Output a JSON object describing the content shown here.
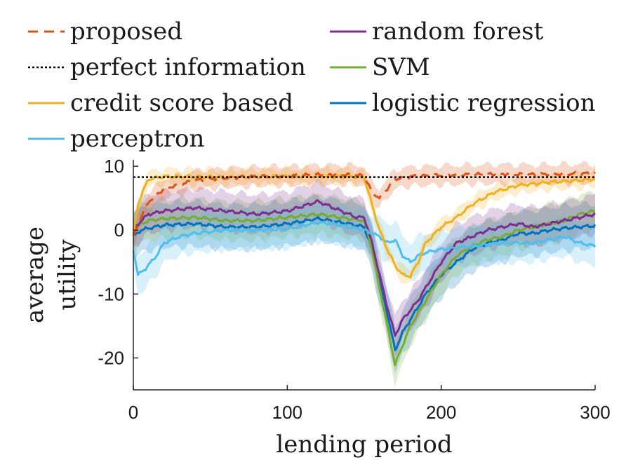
{
  "chart_data": {
    "type": "line",
    "xlabel": "lending period",
    "ylabel": [
      "average",
      "utility"
    ],
    "xlim": [
      0,
      300
    ],
    "ylim": [
      -25,
      11
    ],
    "xticks": [
      0,
      100,
      200,
      300
    ],
    "yticks": [
      10,
      0,
      -10,
      -20
    ],
    "grid": false,
    "legend_placement": "top",
    "series": [
      {
        "name": "proposed",
        "color": "#D95319",
        "dash": "dashed",
        "band": 1.5,
        "points": [
          [
            0,
            -1
          ],
          [
            5,
            2
          ],
          [
            10,
            4.5
          ],
          [
            20,
            6.5
          ],
          [
            40,
            7.8
          ],
          [
            60,
            8.2
          ],
          [
            80,
            8.4
          ],
          [
            100,
            8.5
          ],
          [
            120,
            8.7
          ],
          [
            140,
            8.7
          ],
          [
            150,
            8.5
          ],
          [
            155,
            6
          ],
          [
            160,
            5
          ],
          [
            165,
            6.5
          ],
          [
            170,
            8
          ],
          [
            180,
            8.4
          ],
          [
            200,
            8.6
          ],
          [
            220,
            8.7
          ],
          [
            240,
            8.8
          ],
          [
            260,
            8.7
          ],
          [
            280,
            8.8
          ],
          [
            300,
            8.9
          ]
        ]
      },
      {
        "name": "perfect information",
        "color": "#000000",
        "dash": "dotted",
        "band": 0,
        "points": [
          [
            0,
            8.3
          ],
          [
            300,
            8.3
          ]
        ]
      },
      {
        "name": "credit score based",
        "color": "#EDB120",
        "dash": "solid",
        "band": 1.2,
        "points": [
          [
            0,
            -1
          ],
          [
            3,
            4
          ],
          [
            6,
            6
          ],
          [
            10,
            8
          ],
          [
            20,
            8.4
          ],
          [
            60,
            8.3
          ],
          [
            100,
            8.4
          ],
          [
            140,
            8.4
          ],
          [
            150,
            8.3
          ],
          [
            155,
            4
          ],
          [
            160,
            0
          ],
          [
            165,
            -3
          ],
          [
            170,
            -5.5
          ],
          [
            175,
            -7
          ],
          [
            180,
            -7.2
          ],
          [
            185,
            -5
          ],
          [
            190,
            -2
          ],
          [
            200,
            0.5
          ],
          [
            210,
            2
          ],
          [
            220,
            4
          ],
          [
            235,
            6
          ],
          [
            250,
            7
          ],
          [
            270,
            7.5
          ],
          [
            290,
            7.8
          ],
          [
            300,
            8
          ]
        ]
      },
      {
        "name": "perceptron",
        "color": "#4DBEEE",
        "dash": "solid",
        "band": 3,
        "points": [
          [
            0,
            -3
          ],
          [
            3,
            -7
          ],
          [
            8,
            -6
          ],
          [
            15,
            -4
          ],
          [
            20,
            -2
          ],
          [
            30,
            -1
          ],
          [
            40,
            -0.5
          ],
          [
            60,
            0
          ],
          [
            80,
            0
          ],
          [
            100,
            0.2
          ],
          [
            120,
            1.2
          ],
          [
            130,
            1
          ],
          [
            140,
            0.5
          ],
          [
            150,
            0
          ],
          [
            160,
            -1
          ],
          [
            165,
            -2
          ],
          [
            170,
            -1.5
          ],
          [
            175,
            -4
          ],
          [
            180,
            -5
          ],
          [
            185,
            -4
          ],
          [
            190,
            -3.5
          ],
          [
            200,
            -3
          ],
          [
            220,
            -2.5
          ],
          [
            240,
            -2
          ],
          [
            260,
            -2
          ],
          [
            270,
            -1.5
          ],
          [
            280,
            -1
          ],
          [
            290,
            -2
          ],
          [
            300,
            -2.5
          ]
        ]
      },
      {
        "name": "random forest",
        "color": "#7E2F8E",
        "dash": "solid",
        "band": 3,
        "points": [
          [
            0,
            0
          ],
          [
            5,
            1.5
          ],
          [
            10,
            2.5
          ],
          [
            20,
            3
          ],
          [
            40,
            3.5
          ],
          [
            60,
            3
          ],
          [
            80,
            2.5
          ],
          [
            100,
            3
          ],
          [
            120,
            4.5
          ],
          [
            130,
            3.5
          ],
          [
            145,
            2
          ],
          [
            150,
            2
          ],
          [
            155,
            -2
          ],
          [
            160,
            -7
          ],
          [
            165,
            -12
          ],
          [
            170,
            -16.5
          ],
          [
            175,
            -14
          ],
          [
            180,
            -12.5
          ],
          [
            185,
            -11
          ],
          [
            190,
            -9
          ],
          [
            200,
            -5
          ],
          [
            210,
            -2
          ],
          [
            220,
            -1
          ],
          [
            230,
            0
          ],
          [
            240,
            0.5
          ],
          [
            250,
            1
          ],
          [
            260,
            0.5
          ],
          [
            270,
            1
          ],
          [
            280,
            1.5
          ],
          [
            290,
            2
          ],
          [
            300,
            2.5
          ]
        ]
      },
      {
        "name": "SVM",
        "color": "#77AC30",
        "dash": "solid",
        "band": 3,
        "points": [
          [
            0,
            0
          ],
          [
            5,
            1
          ],
          [
            10,
            1.5
          ],
          [
            20,
            1.8
          ],
          [
            40,
            2
          ],
          [
            60,
            1.5
          ],
          [
            80,
            1.5
          ],
          [
            100,
            2
          ],
          [
            120,
            2.5
          ],
          [
            140,
            1.8
          ],
          [
            150,
            1.5
          ],
          [
            155,
            -3
          ],
          [
            160,
            -9
          ],
          [
            165,
            -15
          ],
          [
            170,
            -21
          ],
          [
            175,
            -18
          ],
          [
            180,
            -15
          ],
          [
            185,
            -13
          ],
          [
            190,
            -11
          ],
          [
            200,
            -7
          ],
          [
            210,
            -4
          ],
          [
            220,
            -2.5
          ],
          [
            230,
            -1.5
          ],
          [
            240,
            -1
          ],
          [
            250,
            0
          ],
          [
            260,
            0.5
          ],
          [
            270,
            1
          ],
          [
            280,
            1.5
          ],
          [
            290,
            2.5
          ],
          [
            300,
            3
          ]
        ]
      },
      {
        "name": "logistic regression",
        "color": "#0072BD",
        "dash": "solid",
        "band": 3.5,
        "points": [
          [
            0,
            -1
          ],
          [
            5,
            0
          ],
          [
            10,
            0.3
          ],
          [
            20,
            0.8
          ],
          [
            40,
            1
          ],
          [
            60,
            0.5
          ],
          [
            80,
            0.5
          ],
          [
            100,
            1
          ],
          [
            120,
            1.8
          ],
          [
            140,
            1
          ],
          [
            150,
            0.5
          ],
          [
            155,
            -3
          ],
          [
            160,
            -8
          ],
          [
            165,
            -13
          ],
          [
            170,
            -18.8
          ],
          [
            175,
            -16
          ],
          [
            180,
            -14
          ],
          [
            185,
            -12
          ],
          [
            190,
            -10
          ],
          [
            200,
            -7
          ],
          [
            210,
            -5
          ],
          [
            220,
            -3
          ],
          [
            230,
            -2
          ],
          [
            240,
            -1.5
          ],
          [
            250,
            -0.5
          ],
          [
            260,
            -0.5
          ],
          [
            270,
            0
          ],
          [
            280,
            0.3
          ],
          [
            290,
            0.5
          ],
          [
            300,
            0.7
          ]
        ]
      }
    ],
    "legend": {
      "columns": [
        [
          "proposed",
          "perfect information",
          "credit score based",
          "perceptron"
        ],
        [
          "random forest",
          "SVM",
          "logistic regression"
        ]
      ]
    }
  }
}
